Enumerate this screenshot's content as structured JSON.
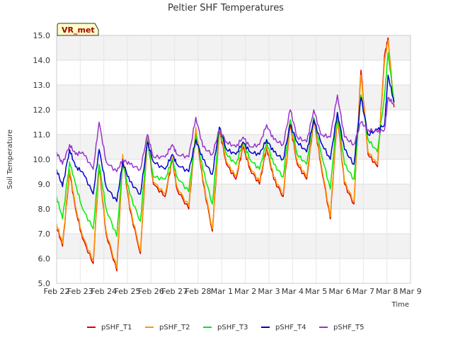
{
  "chart_data": {
    "type": "line",
    "title": "Peltier SHF Temperatures",
    "xlabel": "Time",
    "ylabel": "Soil Temperature",
    "ylim": [
      5.0,
      15.0
    ],
    "xlim": [
      "Feb 22",
      "Mar 9"
    ],
    "yticks": [
      "5.0",
      "6.0",
      "7.0",
      "8.0",
      "9.0",
      "10.0",
      "11.0",
      "12.0",
      "13.0",
      "14.0",
      "15.0"
    ],
    "xticks": [
      "Feb 22",
      "Feb 23",
      "Feb 24",
      "Feb 25",
      "Feb 26",
      "Feb 27",
      "Feb 28",
      "Mar 1",
      "Mar 2",
      "Mar 3",
      "Mar 4",
      "Mar 5",
      "Mar 6",
      "Mar 7",
      "Mar 8",
      "Mar 9"
    ],
    "grid": true,
    "legend_position": "bottom",
    "annotation": "VR_met",
    "series": [
      {
        "name": "pSHF_T1",
        "color": "#dd0000",
        "values": [
          [
            0.0,
            7.3
          ],
          [
            0.25,
            6.5
          ],
          [
            0.55,
            9.5
          ],
          [
            0.8,
            8.0
          ],
          [
            1.1,
            6.8
          ],
          [
            1.55,
            5.8
          ],
          [
            1.8,
            9.7
          ],
          [
            2.1,
            7.0
          ],
          [
            2.55,
            5.5
          ],
          [
            2.8,
            10.1
          ],
          [
            3.1,
            8.0
          ],
          [
            3.55,
            6.2
          ],
          [
            3.85,
            10.9
          ],
          [
            4.1,
            9.0
          ],
          [
            4.6,
            8.5
          ],
          [
            4.9,
            10.0
          ],
          [
            5.1,
            8.8
          ],
          [
            5.6,
            8.0
          ],
          [
            5.9,
            11.2
          ],
          [
            6.2,
            9.1
          ],
          [
            6.6,
            7.1
          ],
          [
            6.9,
            11.2
          ],
          [
            7.2,
            9.8
          ],
          [
            7.6,
            9.2
          ],
          [
            7.9,
            10.5
          ],
          [
            8.2,
            9.6
          ],
          [
            8.6,
            9.0
          ],
          [
            8.9,
            10.5
          ],
          [
            9.2,
            9.2
          ],
          [
            9.6,
            8.5
          ],
          [
            9.9,
            11.4
          ],
          [
            10.2,
            9.8
          ],
          [
            10.6,
            9.2
          ],
          [
            10.9,
            11.6
          ],
          [
            11.2,
            9.8
          ],
          [
            11.6,
            7.6
          ],
          [
            11.9,
            11.8
          ],
          [
            12.2,
            9.0
          ],
          [
            12.6,
            8.2
          ],
          [
            12.9,
            13.6
          ],
          [
            13.2,
            10.2
          ],
          [
            13.6,
            9.7
          ],
          [
            13.9,
            14.2
          ],
          [
            14.05,
            14.9
          ],
          [
            14.3,
            12.1
          ]
        ]
      },
      {
        "name": "pSHF_T2",
        "color": "#ff9900",
        "values": [
          [
            0.0,
            7.4
          ],
          [
            0.25,
            6.6
          ],
          [
            0.55,
            9.6
          ],
          [
            0.8,
            8.1
          ],
          [
            1.1,
            6.9
          ],
          [
            1.55,
            5.9
          ],
          [
            1.8,
            9.8
          ],
          [
            2.1,
            7.1
          ],
          [
            2.55,
            5.6
          ],
          [
            2.8,
            10.2
          ],
          [
            3.1,
            8.1
          ],
          [
            3.55,
            6.3
          ],
          [
            3.85,
            11.0
          ],
          [
            4.1,
            9.1
          ],
          [
            4.6,
            8.6
          ],
          [
            4.9,
            10.1
          ],
          [
            5.1,
            8.9
          ],
          [
            5.6,
            8.1
          ],
          [
            5.9,
            11.3
          ],
          [
            6.2,
            9.2
          ],
          [
            6.6,
            7.2
          ],
          [
            6.9,
            11.3
          ],
          [
            7.2,
            9.9
          ],
          [
            7.6,
            9.3
          ],
          [
            7.9,
            10.6
          ],
          [
            8.2,
            9.7
          ],
          [
            8.6,
            9.1
          ],
          [
            8.9,
            10.6
          ],
          [
            9.2,
            9.3
          ],
          [
            9.6,
            8.6
          ],
          [
            9.9,
            11.5
          ],
          [
            10.2,
            9.9
          ],
          [
            10.6,
            9.3
          ],
          [
            10.9,
            11.7
          ],
          [
            11.2,
            9.9
          ],
          [
            11.6,
            7.7
          ],
          [
            11.9,
            11.9
          ],
          [
            12.2,
            9.1
          ],
          [
            12.6,
            8.3
          ],
          [
            12.9,
            13.4
          ],
          [
            13.2,
            10.3
          ],
          [
            13.6,
            9.8
          ],
          [
            13.9,
            14.0
          ],
          [
            14.05,
            14.8
          ],
          [
            14.3,
            12.2
          ]
        ]
      },
      {
        "name": "pSHF_T3",
        "color": "#00ee00",
        "values": [
          [
            0.0,
            8.5
          ],
          [
            0.25,
            7.6
          ],
          [
            0.55,
            9.9
          ],
          [
            0.8,
            9.0
          ],
          [
            1.1,
            8.0
          ],
          [
            1.55,
            7.2
          ],
          [
            1.8,
            9.8
          ],
          [
            2.1,
            8.0
          ],
          [
            2.55,
            6.9
          ],
          [
            2.8,
            9.9
          ],
          [
            3.1,
            8.6
          ],
          [
            3.55,
            7.5
          ],
          [
            3.85,
            10.8
          ],
          [
            4.1,
            9.3
          ],
          [
            4.6,
            9.2
          ],
          [
            4.9,
            10.0
          ],
          [
            5.1,
            9.3
          ],
          [
            5.6,
            8.7
          ],
          [
            5.9,
            11.0
          ],
          [
            6.2,
            9.6
          ],
          [
            6.6,
            8.2
          ],
          [
            6.9,
            11.3
          ],
          [
            7.2,
            10.2
          ],
          [
            7.6,
            9.8
          ],
          [
            7.9,
            10.7
          ],
          [
            8.2,
            10.0
          ],
          [
            8.6,
            9.6
          ],
          [
            8.9,
            10.7
          ],
          [
            9.2,
            9.8
          ],
          [
            9.6,
            9.3
          ],
          [
            9.9,
            11.6
          ],
          [
            10.2,
            10.2
          ],
          [
            10.6,
            9.8
          ],
          [
            10.9,
            11.7
          ],
          [
            11.2,
            10.3
          ],
          [
            11.6,
            8.8
          ],
          [
            11.9,
            11.9
          ],
          [
            12.2,
            9.8
          ],
          [
            12.6,
            9.2
          ],
          [
            12.9,
            12.6
          ],
          [
            13.2,
            10.8
          ],
          [
            13.6,
            10.3
          ],
          [
            13.9,
            12.6
          ],
          [
            14.05,
            14.3
          ],
          [
            14.3,
            12.3
          ]
        ]
      },
      {
        "name": "pSHF_T4",
        "color": "#0000cc",
        "values": [
          [
            0.0,
            9.6
          ],
          [
            0.25,
            8.9
          ],
          [
            0.55,
            10.4
          ],
          [
            0.8,
            9.7
          ],
          [
            1.1,
            9.5
          ],
          [
            1.55,
            8.6
          ],
          [
            1.8,
            10.4
          ],
          [
            2.1,
            8.9
          ],
          [
            2.55,
            8.3
          ],
          [
            2.8,
            9.9
          ],
          [
            3.1,
            9.1
          ],
          [
            3.55,
            8.6
          ],
          [
            3.85,
            10.7
          ],
          [
            4.1,
            9.9
          ],
          [
            4.6,
            9.6
          ],
          [
            4.9,
            10.2
          ],
          [
            5.1,
            9.8
          ],
          [
            5.6,
            9.5
          ],
          [
            5.9,
            10.8
          ],
          [
            6.2,
            10.0
          ],
          [
            6.6,
            9.4
          ],
          [
            6.9,
            11.3
          ],
          [
            7.2,
            10.4
          ],
          [
            7.6,
            10.2
          ],
          [
            7.9,
            10.7
          ],
          [
            8.2,
            10.3
          ],
          [
            8.6,
            10.2
          ],
          [
            8.9,
            10.8
          ],
          [
            9.2,
            10.3
          ],
          [
            9.6,
            10.0
          ],
          [
            9.9,
            11.4
          ],
          [
            10.2,
            10.7
          ],
          [
            10.6,
            10.3
          ],
          [
            10.9,
            11.6
          ],
          [
            11.2,
            10.7
          ],
          [
            11.6,
            10.0
          ],
          [
            11.9,
            11.9
          ],
          [
            12.2,
            10.4
          ],
          [
            12.6,
            9.8
          ],
          [
            12.9,
            12.5
          ],
          [
            13.2,
            11.0
          ],
          [
            13.6,
            11.2
          ],
          [
            13.9,
            11.4
          ],
          [
            14.05,
            13.4
          ],
          [
            14.3,
            12.3
          ]
        ]
      },
      {
        "name": "pSHF_T5",
        "color": "#9933cc",
        "values": [
          [
            0.0,
            10.3
          ],
          [
            0.25,
            9.8
          ],
          [
            0.55,
            10.6
          ],
          [
            0.8,
            10.2
          ],
          [
            1.1,
            10.3
          ],
          [
            1.55,
            9.6
          ],
          [
            1.8,
            11.5
          ],
          [
            2.1,
            9.9
          ],
          [
            2.55,
            9.5
          ],
          [
            2.8,
            10.0
          ],
          [
            3.1,
            9.8
          ],
          [
            3.55,
            9.6
          ],
          [
            3.85,
            11.0
          ],
          [
            4.1,
            10.1
          ],
          [
            4.6,
            10.1
          ],
          [
            4.9,
            10.6
          ],
          [
            5.1,
            10.2
          ],
          [
            5.6,
            10.1
          ],
          [
            5.9,
            11.7
          ],
          [
            6.2,
            10.5
          ],
          [
            6.6,
            10.2
          ],
          [
            6.9,
            11.2
          ],
          [
            7.2,
            10.7
          ],
          [
            7.6,
            10.5
          ],
          [
            7.9,
            10.9
          ],
          [
            8.2,
            10.5
          ],
          [
            8.6,
            10.6
          ],
          [
            8.9,
            11.4
          ],
          [
            9.2,
            10.8
          ],
          [
            9.6,
            10.6
          ],
          [
            9.9,
            12.0
          ],
          [
            10.2,
            10.9
          ],
          [
            10.6,
            10.7
          ],
          [
            10.9,
            12.0
          ],
          [
            11.2,
            11.0
          ],
          [
            11.6,
            10.9
          ],
          [
            11.9,
            12.6
          ],
          [
            12.2,
            10.9
          ],
          [
            12.6,
            10.6
          ],
          [
            12.9,
            11.5
          ],
          [
            13.2,
            11.2
          ],
          [
            13.6,
            11.1
          ],
          [
            13.9,
            11.2
          ],
          [
            14.05,
            12.5
          ],
          [
            14.3,
            12.2
          ]
        ]
      }
    ]
  }
}
